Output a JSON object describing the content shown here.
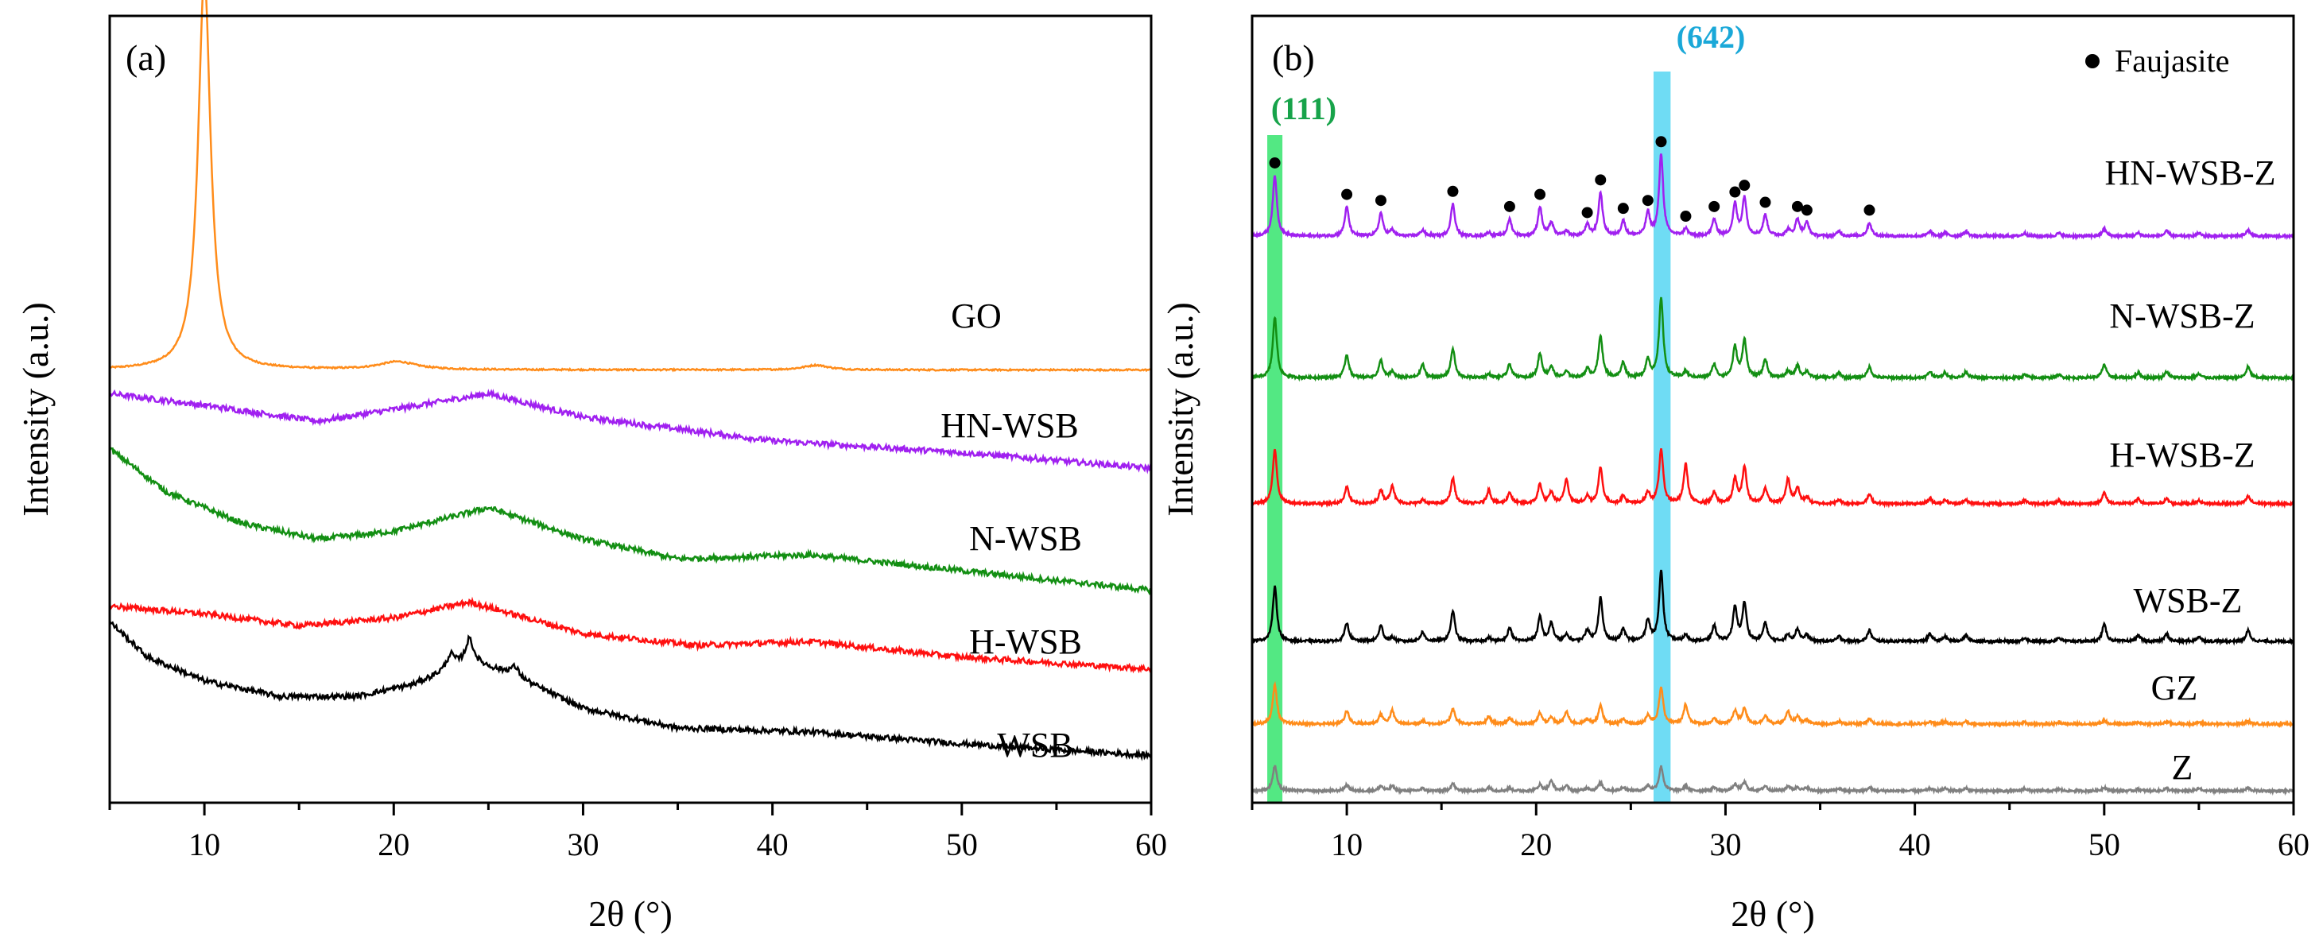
{
  "chart_data": [
    {
      "type": "line",
      "panel_label": "(a)",
      "xlabel": "2θ (°)",
      "ylabel": "Intensity (a.u.)",
      "xlim": [
        5,
        60
      ],
      "x_ticks": [
        "10",
        "20",
        "30",
        "40",
        "50",
        "60"
      ],
      "x_tick_values": [
        10,
        20,
        30,
        40,
        50,
        60
      ],
      "y_ticks": "none",
      "series": [
        {
          "name": "GO",
          "color": "#ff8c1a",
          "offset": 0.55,
          "baseline": [
            [
              5,
              0.0
            ],
            [
              60,
              0.0
            ]
          ],
          "peaks": [
            {
              "center": 10.0,
              "height": 0.5,
              "width": 0.4
            },
            {
              "center": 20.2,
              "height": 0.01,
              "width": 1.2
            },
            {
              "center": 42.3,
              "height": 0.006,
              "width": 0.8
            }
          ]
        },
        {
          "name": "HN-WSB",
          "color": "#a020f0",
          "offset": 0.0,
          "baseline": [
            [
              5,
              0.52
            ],
            [
              10,
              0.505
            ],
            [
              16,
              0.485
            ],
            [
              20,
              0.5
            ],
            [
              25,
              0.52
            ],
            [
              30,
              0.49
            ],
            [
              40,
              0.46
            ],
            [
              50,
              0.445
            ],
            [
              60,
              0.425
            ]
          ],
          "peaks": []
        },
        {
          "name": "N-WSB",
          "color": "#138f13",
          "offset": 0.0,
          "baseline": [
            [
              5,
              0.45
            ],
            [
              8,
              0.395
            ],
            [
              12,
              0.355
            ],
            [
              16,
              0.335
            ],
            [
              20,
              0.345
            ],
            [
              25,
              0.375
            ],
            [
              30,
              0.335
            ],
            [
              35,
              0.31
            ],
            [
              42,
              0.315
            ],
            [
              50,
              0.295
            ],
            [
              60,
              0.27
            ]
          ],
          "peaks": []
        },
        {
          "name": "H-WSB",
          "color": "#ff1010",
          "offset": 0.0,
          "baseline": [
            [
              5,
              0.25
            ],
            [
              10,
              0.24
            ],
            [
              15,
              0.225
            ],
            [
              20,
              0.235
            ],
            [
              24,
              0.255
            ],
            [
              30,
              0.215
            ],
            [
              36,
              0.2
            ],
            [
              42,
              0.205
            ],
            [
              50,
              0.185
            ],
            [
              60,
              0.17
            ]
          ],
          "peaks": []
        },
        {
          "name": "WSB",
          "color": "#000000",
          "offset": 0.0,
          "baseline": [
            [
              5,
              0.23
            ],
            [
              7,
              0.185
            ],
            [
              10,
              0.155
            ],
            [
              14,
              0.135
            ],
            [
              18,
              0.135
            ],
            [
              21,
              0.15
            ],
            [
              24,
              0.18
            ],
            [
              26,
              0.165
            ],
            [
              30,
              0.12
            ],
            [
              35,
              0.095
            ],
            [
              42,
              0.09
            ],
            [
              50,
              0.075
            ],
            [
              60,
              0.06
            ]
          ],
          "peaks": [
            {
              "center": 23.0,
              "height": 0.018,
              "width": 0.25
            },
            {
              "center": 24.0,
              "height": 0.028,
              "width": 0.25
            },
            {
              "center": 26.4,
              "height": 0.012,
              "width": 0.3
            }
          ]
        }
      ]
    },
    {
      "type": "line",
      "panel_label": "(b)",
      "xlabel": "2θ (°)",
      "ylabel": "Intensity (a.u.)",
      "xlim": [
        5,
        60
      ],
      "x_ticks": [
        "10",
        "20",
        "30",
        "40",
        "50",
        "60"
      ],
      "x_tick_values": [
        10,
        20,
        30,
        40,
        50,
        60
      ],
      "y_ticks": "none",
      "legend": {
        "marker": "●",
        "label": "Faujasite",
        "position": "top-right"
      },
      "highlight_bands": [
        {
          "label": "(111)",
          "x_range": [
            5.8,
            6.6
          ],
          "color": "#19e05a",
          "label_color": "#17a34a",
          "center": 6.2
        },
        {
          "label": "(642)",
          "x_range": [
            26.2,
            27.1
          ],
          "color": "#3fd0f0",
          "label_color": "#1aa8d8",
          "center": 26.6
        }
      ],
      "faujasite_markers": [
        6.2,
        10.0,
        11.8,
        15.6,
        18.6,
        20.2,
        22.7,
        23.4,
        24.6,
        25.9,
        26.6,
        27.9,
        29.4,
        30.5,
        31.0,
        32.1,
        33.8,
        34.3,
        37.6
      ],
      "peak_positions": [
        6.2,
        10.0,
        11.8,
        12.4,
        14.0,
        15.6,
        17.5,
        18.6,
        20.2,
        20.8,
        21.6,
        22.7,
        23.4,
        24.6,
        25.9,
        26.6,
        27.9,
        29.4,
        30.5,
        31.0,
        32.1,
        33.3,
        33.8,
        34.3,
        36.0,
        37.6,
        40.8,
        41.6,
        42.7,
        45.8,
        47.6,
        50.0,
        51.8,
        53.3,
        55.0,
        57.6
      ],
      "series": [
        {
          "name": "HN-WSB-Z",
          "color": "#a020f0",
          "offset": 0.72,
          "scale": 0.55,
          "relative_heights": [
            1.0,
            0.48,
            0.38,
            0.1,
            0.1,
            0.53,
            0.06,
            0.28,
            0.48,
            0.22,
            0.08,
            0.18,
            0.72,
            0.25,
            0.38,
            1.35,
            0.12,
            0.28,
            0.52,
            0.63,
            0.35,
            0.1,
            0.28,
            0.22,
            0.08,
            0.22,
            0.08,
            0.06,
            0.08,
            0.05,
            0.05,
            0.12,
            0.05,
            0.08,
            0.05,
            0.1
          ]
        },
        {
          "name": "N-WSB-Z",
          "color": "#138f13",
          "offset": 0.54,
          "scale": 0.55,
          "relative_heights": [
            1.0,
            0.38,
            0.28,
            0.1,
            0.22,
            0.48,
            0.06,
            0.22,
            0.4,
            0.18,
            0.1,
            0.14,
            0.7,
            0.25,
            0.3,
            1.32,
            0.1,
            0.22,
            0.5,
            0.62,
            0.3,
            0.1,
            0.2,
            0.1,
            0.08,
            0.18,
            0.1,
            0.08,
            0.1,
            0.05,
            0.05,
            0.22,
            0.08,
            0.1,
            0.06,
            0.18
          ]
        },
        {
          "name": "H-WSB-Z",
          "color": "#ff1010",
          "offset": 0.38,
          "scale": 0.55,
          "relative_heights": [
            0.9,
            0.28,
            0.22,
            0.3,
            0.06,
            0.42,
            0.22,
            0.18,
            0.32,
            0.18,
            0.4,
            0.12,
            0.6,
            0.12,
            0.18,
            0.9,
            0.65,
            0.18,
            0.4,
            0.6,
            0.25,
            0.4,
            0.25,
            0.1,
            0.06,
            0.15,
            0.08,
            0.06,
            0.06,
            0.06,
            0.05,
            0.18,
            0.08,
            0.08,
            0.05,
            0.12
          ]
        },
        {
          "name": "WSB-Z",
          "color": "#000000",
          "offset": 0.205,
          "scale": 0.55,
          "relative_heights": [
            0.9,
            0.3,
            0.26,
            0.06,
            0.15,
            0.5,
            0.06,
            0.22,
            0.4,
            0.3,
            0.1,
            0.18,
            0.72,
            0.2,
            0.35,
            1.15,
            0.1,
            0.26,
            0.55,
            0.62,
            0.3,
            0.1,
            0.2,
            0.1,
            0.08,
            0.18,
            0.12,
            0.08,
            0.1,
            0.06,
            0.06,
            0.28,
            0.1,
            0.12,
            0.08,
            0.18
          ]
        },
        {
          "name": "GZ",
          "color": "#ff8c1a",
          "offset": 0.1,
          "scale": 0.55,
          "relative_heights": [
            0.65,
            0.22,
            0.16,
            0.22,
            0.05,
            0.26,
            0.12,
            0.1,
            0.18,
            0.1,
            0.2,
            0.08,
            0.3,
            0.08,
            0.14,
            0.6,
            0.32,
            0.08,
            0.22,
            0.26,
            0.14,
            0.2,
            0.12,
            0.06,
            0.04,
            0.08,
            0.04,
            0.04,
            0.04,
            0.03,
            0.03,
            0.06,
            0.03,
            0.04,
            0.03,
            0.05
          ]
        },
        {
          "name": "Z",
          "color": "#808080",
          "offset": 0.015,
          "scale": 0.55,
          "relative_heights": [
            0.42,
            0.1,
            0.08,
            0.08,
            0.04,
            0.12,
            0.06,
            0.05,
            0.1,
            0.16,
            0.08,
            0.05,
            0.14,
            0.06,
            0.08,
            0.4,
            0.08,
            0.06,
            0.1,
            0.14,
            0.08,
            0.08,
            0.06,
            0.05,
            0.04,
            0.05,
            0.04,
            0.04,
            0.04,
            0.04,
            0.03,
            0.06,
            0.03,
            0.04,
            0.04,
            0.05
          ]
        }
      ]
    }
  ]
}
